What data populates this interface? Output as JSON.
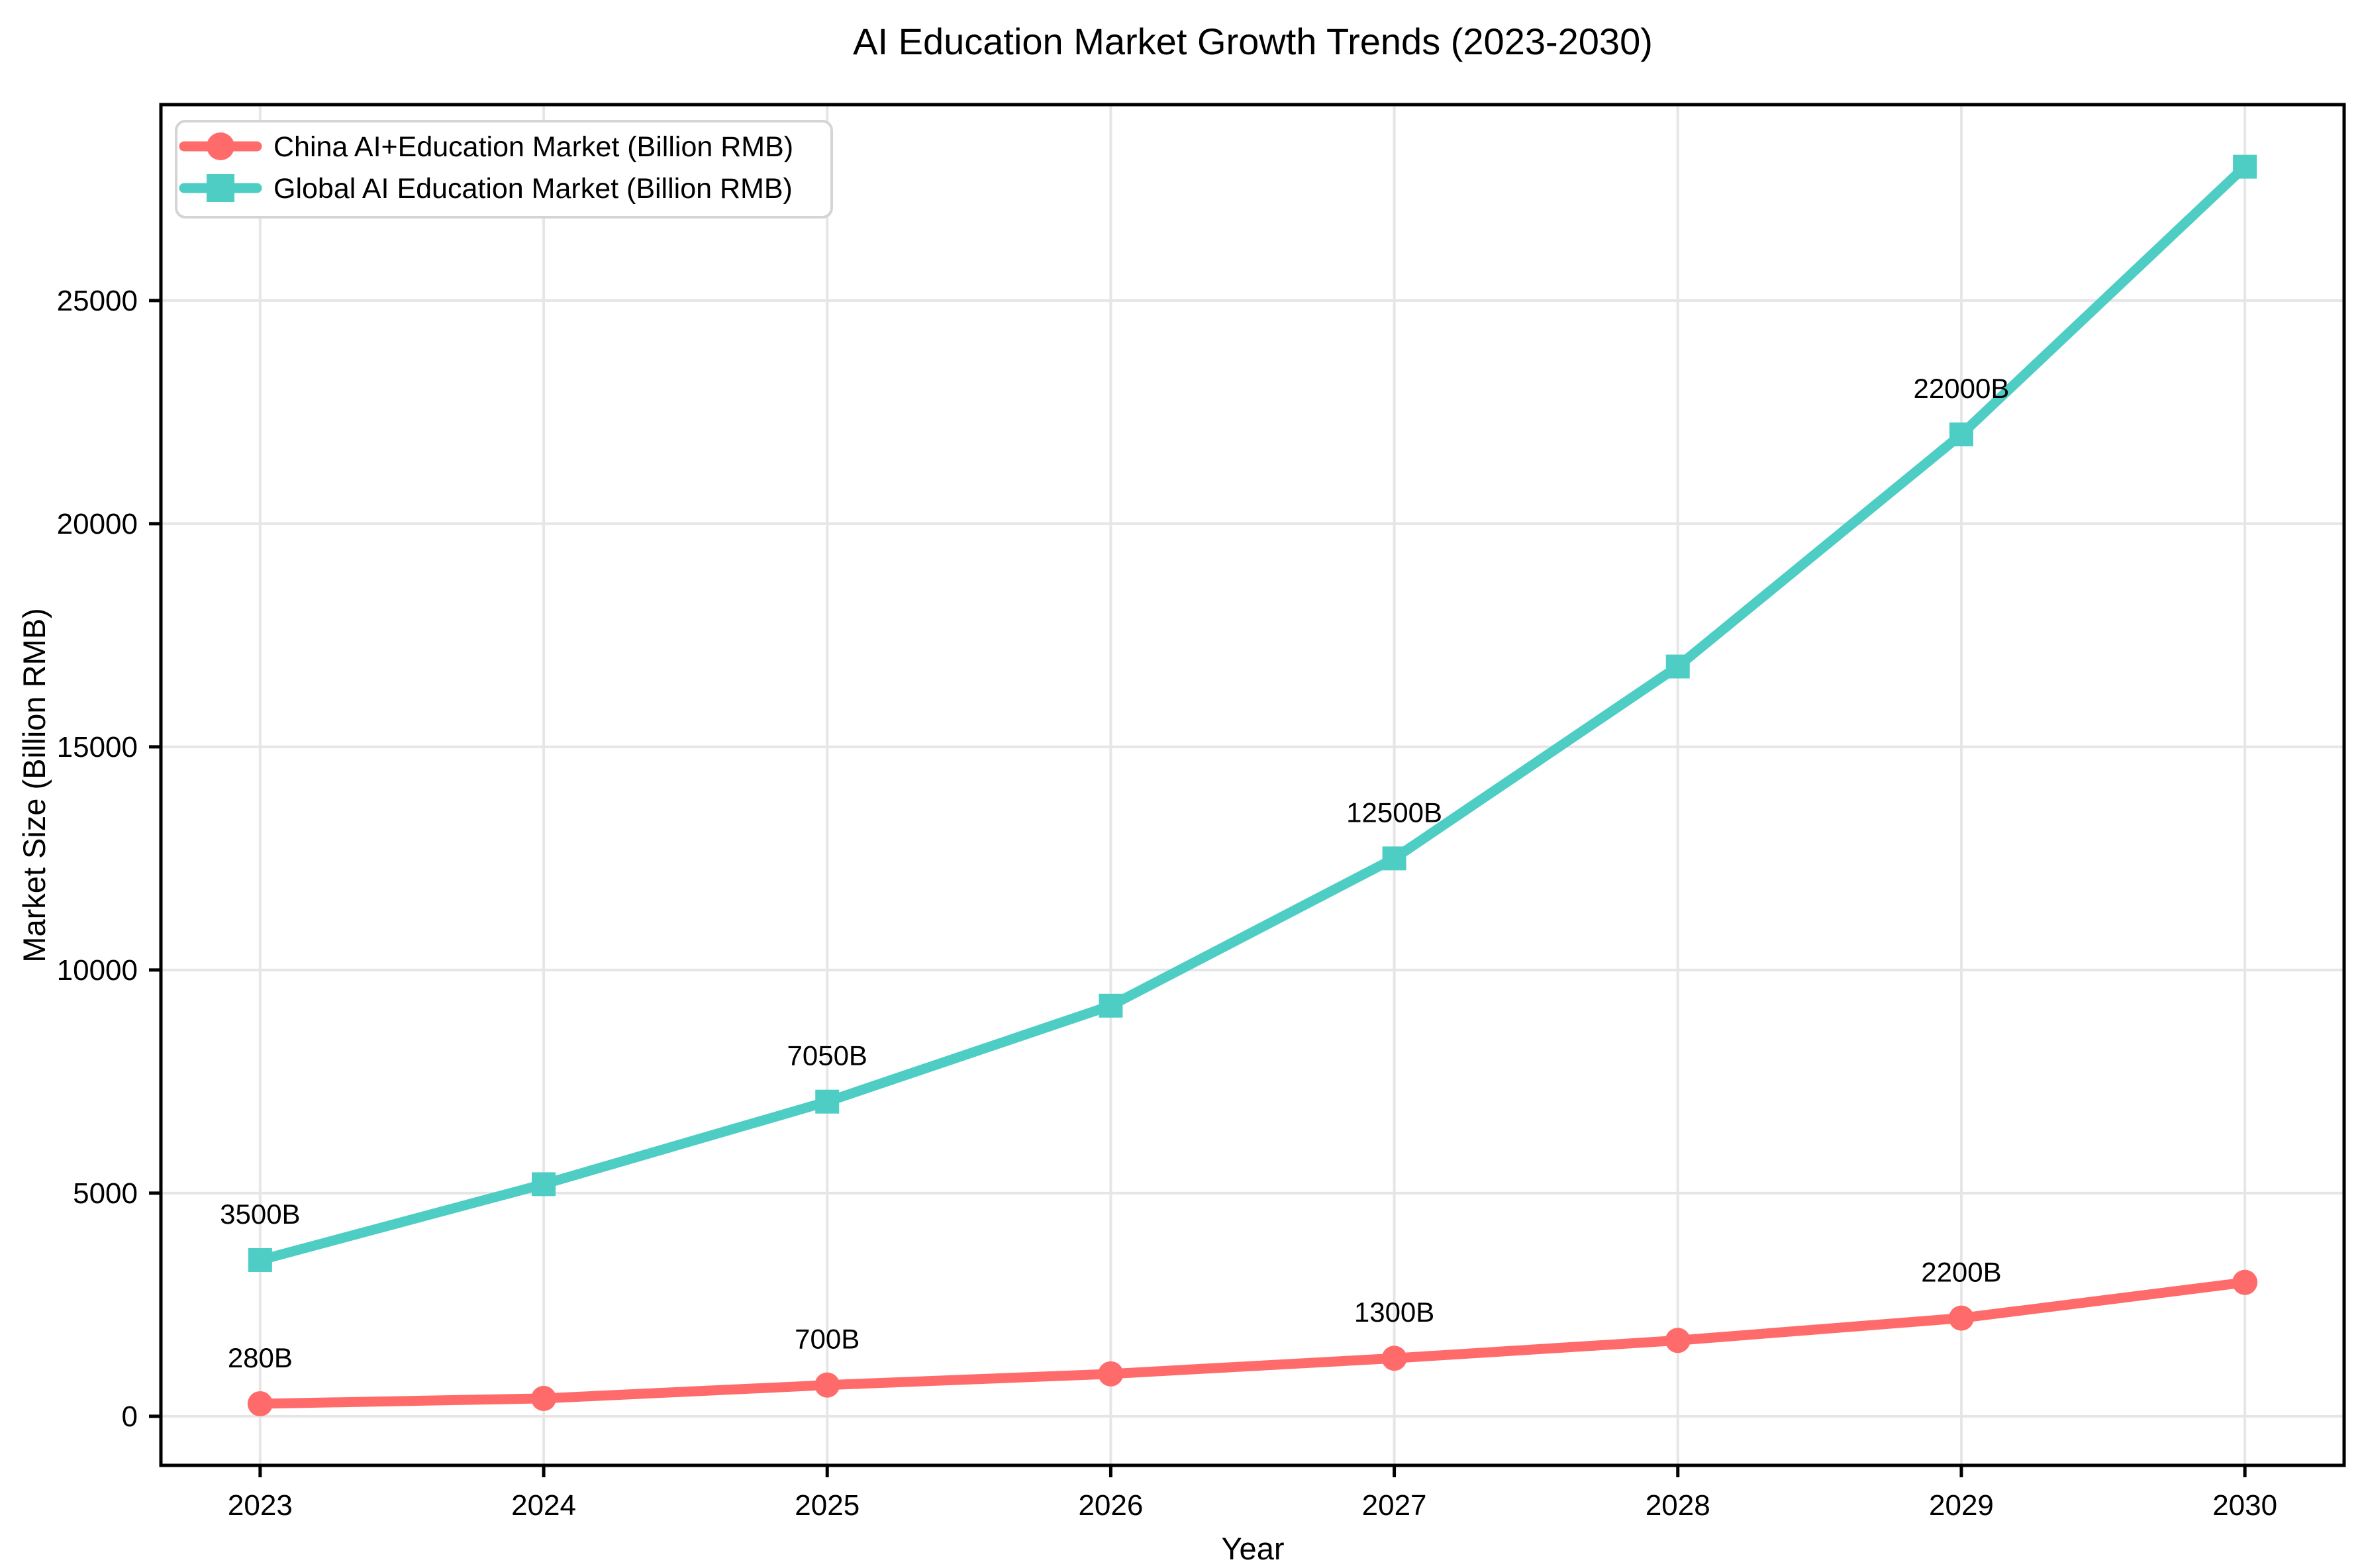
{
  "chart_data": {
    "type": "line",
    "title": "AI Education Market Growth Trends (2023-2030)",
    "xlabel": "Year",
    "ylabel": "Market Size (Billion RMB)",
    "categories": [
      2023,
      2024,
      2025,
      2026,
      2027,
      2028,
      2029,
      2030
    ],
    "series": [
      {
        "name": "China AI+Education Market (Billion RMB)",
        "color": "#FF6B6B",
        "marker": "circle",
        "values": [
          280,
          400,
          700,
          950,
          1300,
          1700,
          2200,
          3000
        ],
        "point_labels": [
          "280B",
          "",
          "700B",
          "",
          "1300B",
          "",
          "2200B",
          ""
        ]
      },
      {
        "name": "Global AI Education Market (Billion RMB)",
        "color": "#4ECDC4",
        "marker": "square",
        "values": [
          3500,
          5200,
          7050,
          9200,
          12500,
          16800,
          22000,
          28000
        ],
        "point_labels": [
          "3500B",
          "",
          "7050B",
          "",
          "12500B",
          "",
          "22000B",
          ""
        ]
      }
    ],
    "yticks": [
      0,
      5000,
      10000,
      15000,
      20000,
      25000
    ],
    "xlim": [
      2022.65,
      2030.35
    ],
    "ylim": [
      -1100,
      29390
    ],
    "grid": true,
    "legend_position": "upper left"
  },
  "colors": {
    "background": "#ffffff",
    "grid": "#e6e6e6",
    "spine": "#000000",
    "text": "#000000",
    "legend_border": "#d4d4d4",
    "legend_background": "#ffffff"
  }
}
